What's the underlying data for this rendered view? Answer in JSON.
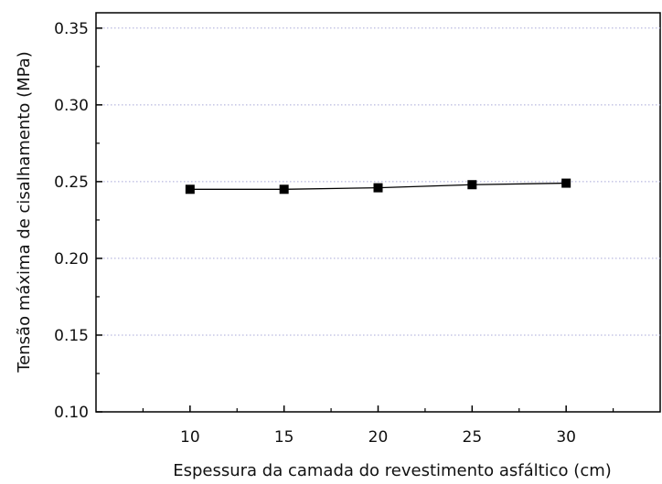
{
  "chart_data": {
    "type": "line",
    "title": "",
    "xlabel": "Espessura da camada do revestimento asfáltico (cm)",
    "ylabel": "Tensão máxima de cisalhamento (MPa)",
    "x": [
      10,
      15,
      20,
      25,
      30
    ],
    "xticks": [
      "10",
      "15",
      "20",
      "25",
      "30"
    ],
    "xlim": [
      5,
      35
    ],
    "yticks": [
      "0.10",
      "0.15",
      "0.20",
      "0.25",
      "0.30",
      "0.35"
    ],
    "ylim": [
      0.1,
      0.36
    ],
    "grid": "horizontal-dotted",
    "legend": "none",
    "series": [
      {
        "values": [
          0.245,
          0.245,
          0.246,
          0.248,
          0.249
        ],
        "color": "#000000",
        "marker": "square"
      }
    ]
  }
}
